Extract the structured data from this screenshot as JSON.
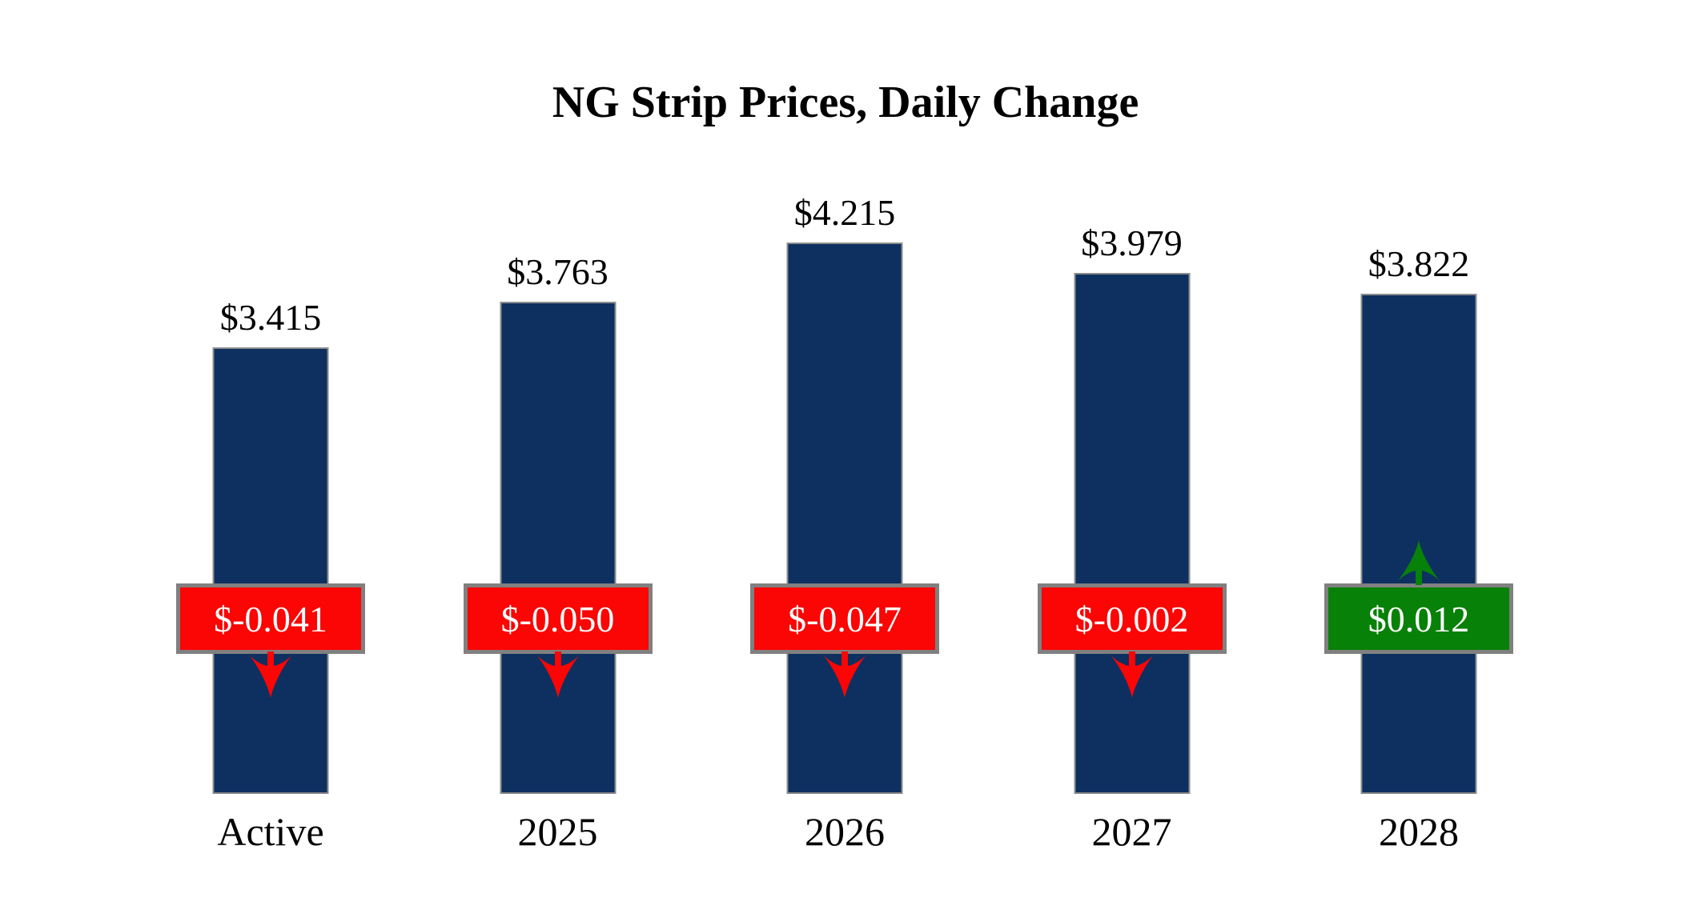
{
  "chart_data": {
    "type": "bar",
    "title": "NG Strip Prices, Daily Change",
    "categories": [
      "Active",
      "2025",
      "2026",
      "2027",
      "2028"
    ],
    "values": [
      3.415,
      3.763,
      4.215,
      3.979,
      3.822
    ],
    "daily_changes": [
      -0.041,
      -0.05,
      -0.047,
      -0.002,
      0.012
    ],
    "bars": [
      {
        "category": "Active",
        "value": 3.415,
        "price_label": "$3.415",
        "change": -0.041,
        "change_label": "$-0.041",
        "direction": "down"
      },
      {
        "category": "2025",
        "value": 3.763,
        "price_label": "$3.763",
        "change": -0.05,
        "change_label": "$-0.050",
        "direction": "down"
      },
      {
        "category": "2026",
        "value": 4.215,
        "price_label": "$4.215",
        "change": -0.047,
        "change_label": "$-0.047",
        "direction": "down"
      },
      {
        "category": "2027",
        "value": 3.979,
        "price_label": "$3.979",
        "change": -0.002,
        "change_label": "$-0.002",
        "direction": "down"
      },
      {
        "category": "2028",
        "value": 3.822,
        "price_label": "$3.822",
        "change": 0.012,
        "change_label": "$0.012",
        "direction": "up"
      }
    ],
    "ylim": [
      0,
      4.215
    ],
    "grid": false,
    "legend": "none",
    "axes_shown": false,
    "colors": {
      "bar_fill": "#0D3060",
      "bar_border": "#8C8C8C",
      "negative_badge": "#FB0505",
      "positive_badge": "#088108",
      "badge_border": "#808080",
      "badge_text": "#FFFFFF",
      "label_text": "#000000",
      "background": "#FFFFFF"
    }
  }
}
